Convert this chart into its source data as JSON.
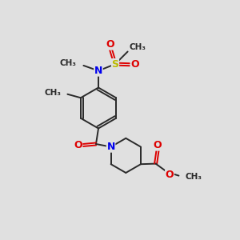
{
  "bg_color": "#e0e0e0",
  "bond_color": "#2a2a2a",
  "N_color": "#0000ee",
  "O_color": "#dd0000",
  "S_color": "#bbbb00",
  "font_size": 8,
  "line_width": 1.4,
  "figsize": [
    3.0,
    3.0
  ],
  "dpi": 100,
  "xlim": [
    0,
    10
  ],
  "ylim": [
    0,
    10
  ]
}
